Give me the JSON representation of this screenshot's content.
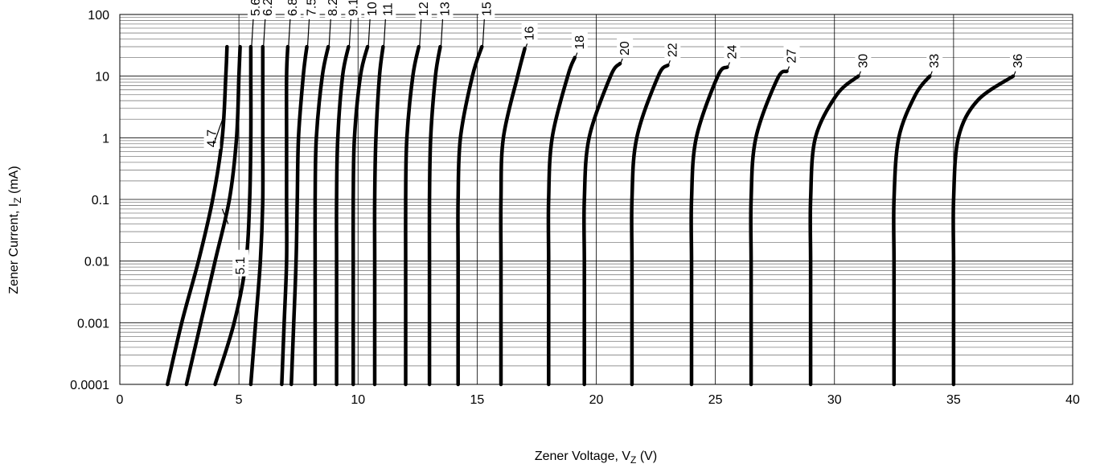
{
  "chart_data": {
    "type": "line",
    "title": "",
    "xlabel": {
      "main": "Zener Voltage, V",
      "sub": "Z",
      "tail": " (V)"
    },
    "ylabel": {
      "main": "Zener Current, I",
      "sub": "Z",
      "tail": " (mA)"
    },
    "xlim": [
      0,
      40
    ],
    "ylim": [
      0.0001,
      100
    ],
    "yscale": "log",
    "grid": true,
    "legend": "none",
    "x_ticks": [
      "0",
      "5",
      "10",
      "15",
      "20",
      "25",
      "30",
      "35",
      "40"
    ],
    "y_ticks": [
      "0.0001",
      "0.001",
      "0.01",
      "0.1",
      "1",
      "10",
      "100"
    ],
    "colors": {
      "curve": "#000000",
      "grid": "#808080",
      "background": "#ffffff"
    },
    "series": [
      {
        "name": "4.7",
        "points": [
          [
            2.0,
            0.0001
          ],
          [
            2.6,
            0.001
          ],
          [
            3.3,
            0.01
          ],
          [
            3.9,
            0.1
          ],
          [
            4.3,
            1
          ],
          [
            4.45,
            10
          ],
          [
            4.5,
            30
          ]
        ]
      },
      {
        "name": "5.1",
        "points": [
          [
            2.8,
            0.0001
          ],
          [
            3.4,
            0.001
          ],
          [
            4.0,
            0.01
          ],
          [
            4.6,
            0.1
          ],
          [
            4.9,
            1
          ],
          [
            5.0,
            10
          ],
          [
            5.05,
            30
          ]
        ]
      },
      {
        "name": "5.6",
        "points": [
          [
            4.0,
            0.0001
          ],
          [
            4.8,
            0.001
          ],
          [
            5.3,
            0.01
          ],
          [
            5.45,
            0.1
          ],
          [
            5.5,
            1
          ],
          [
            5.5,
            10
          ],
          [
            5.5,
            30
          ]
        ]
      },
      {
        "name": "6.2",
        "points": [
          [
            5.5,
            0.0001
          ],
          [
            5.7,
            0.001
          ],
          [
            5.9,
            0.01
          ],
          [
            6.0,
            0.1
          ],
          [
            6.0,
            1
          ],
          [
            6.0,
            10
          ],
          [
            6.0,
            30
          ]
        ]
      },
      {
        "name": "6.8",
        "points": [
          [
            6.8,
            0.0001
          ],
          [
            6.9,
            0.001
          ],
          [
            7.0,
            0.01
          ],
          [
            7.0,
            0.1
          ],
          [
            7.0,
            1
          ],
          [
            7.0,
            10
          ],
          [
            7.05,
            30
          ]
        ]
      },
      {
        "name": "7.5",
        "points": [
          [
            7.2,
            0.0001
          ],
          [
            7.3,
            0.001
          ],
          [
            7.4,
            0.01
          ],
          [
            7.45,
            0.1
          ],
          [
            7.5,
            1
          ],
          [
            7.7,
            10
          ],
          [
            7.85,
            30
          ]
        ]
      },
      {
        "name": "8.2",
        "points": [
          [
            8.2,
            0.0001
          ],
          [
            8.2,
            0.001
          ],
          [
            8.2,
            0.01
          ],
          [
            8.2,
            0.1
          ],
          [
            8.25,
            1
          ],
          [
            8.5,
            10
          ],
          [
            8.75,
            30
          ]
        ]
      },
      {
        "name": "9.1",
        "points": [
          [
            9.1,
            0.0001
          ],
          [
            9.1,
            0.001
          ],
          [
            9.1,
            0.01
          ],
          [
            9.1,
            0.1
          ],
          [
            9.15,
            1
          ],
          [
            9.35,
            10
          ],
          [
            9.6,
            30
          ]
        ]
      },
      {
        "name": "10",
        "points": [
          [
            9.8,
            0.0001
          ],
          [
            9.8,
            0.001
          ],
          [
            9.8,
            0.01
          ],
          [
            9.8,
            0.1
          ],
          [
            9.85,
            1
          ],
          [
            10.1,
            10
          ],
          [
            10.4,
            30
          ]
        ]
      },
      {
        "name": "11",
        "points": [
          [
            10.7,
            0.0001
          ],
          [
            10.7,
            0.001
          ],
          [
            10.7,
            0.01
          ],
          [
            10.7,
            0.1
          ],
          [
            10.75,
            1
          ],
          [
            10.9,
            10
          ],
          [
            11.05,
            30
          ]
        ]
      },
      {
        "name": "12",
        "points": [
          [
            12.0,
            0.0001
          ],
          [
            12.0,
            0.001
          ],
          [
            12.0,
            0.01
          ],
          [
            12.0,
            0.1
          ],
          [
            12.05,
            1
          ],
          [
            12.3,
            10
          ],
          [
            12.55,
            30
          ]
        ]
      },
      {
        "name": "13",
        "points": [
          [
            13.0,
            0.0001
          ],
          [
            13.0,
            0.001
          ],
          [
            13.0,
            0.01
          ],
          [
            13.0,
            0.1
          ],
          [
            13.05,
            1
          ],
          [
            13.25,
            10
          ],
          [
            13.45,
            30
          ]
        ]
      },
      {
        "name": "15",
        "points": [
          [
            14.2,
            0.0001
          ],
          [
            14.2,
            0.001
          ],
          [
            14.2,
            0.01
          ],
          [
            14.2,
            0.1
          ],
          [
            14.3,
            1
          ],
          [
            14.8,
            10
          ],
          [
            15.2,
            30
          ]
        ]
      },
      {
        "name": "16",
        "points": [
          [
            16.0,
            0.0001
          ],
          [
            16.0,
            0.001
          ],
          [
            16.0,
            0.01
          ],
          [
            16.0,
            0.1
          ],
          [
            16.1,
            1
          ],
          [
            16.7,
            10
          ],
          [
            17.0,
            28
          ]
        ]
      },
      {
        "name": "18",
        "points": [
          [
            18.0,
            0.0001
          ],
          [
            18.0,
            0.001
          ],
          [
            18.0,
            0.01
          ],
          [
            18.0,
            0.1
          ],
          [
            18.15,
            1
          ],
          [
            18.8,
            10
          ],
          [
            19.1,
            20
          ]
        ]
      },
      {
        "name": "20",
        "points": [
          [
            19.5,
            0.0001
          ],
          [
            19.5,
            0.001
          ],
          [
            19.5,
            0.01
          ],
          [
            19.5,
            0.1
          ],
          [
            19.7,
            1
          ],
          [
            20.6,
            10
          ],
          [
            21.0,
            16
          ]
        ]
      },
      {
        "name": "22",
        "points": [
          [
            21.5,
            0.0001
          ],
          [
            21.5,
            0.001
          ],
          [
            21.5,
            0.01
          ],
          [
            21.5,
            0.1
          ],
          [
            21.7,
            1
          ],
          [
            22.6,
            10
          ],
          [
            23.0,
            15
          ]
        ]
      },
      {
        "name": "24",
        "points": [
          [
            24.0,
            0.0001
          ],
          [
            24.0,
            0.001
          ],
          [
            24.0,
            0.01
          ],
          [
            24.0,
            0.1
          ],
          [
            24.2,
            1
          ],
          [
            25.1,
            10
          ],
          [
            25.5,
            14
          ]
        ]
      },
      {
        "name": "27",
        "points": [
          [
            26.5,
            0.0001
          ],
          [
            26.5,
            0.001
          ],
          [
            26.5,
            0.01
          ],
          [
            26.5,
            0.1
          ],
          [
            26.7,
            1
          ],
          [
            27.6,
            9
          ],
          [
            28.0,
            12
          ]
        ]
      },
      {
        "name": "30",
        "points": [
          [
            29.0,
            0.0001
          ],
          [
            29.0,
            0.001
          ],
          [
            29.0,
            0.01
          ],
          [
            29.0,
            0.1
          ],
          [
            29.2,
            1
          ],
          [
            30.1,
            5
          ],
          [
            31.0,
            10
          ]
        ]
      },
      {
        "name": "33",
        "points": [
          [
            32.5,
            0.0001
          ],
          [
            32.5,
            0.001
          ],
          [
            32.5,
            0.01
          ],
          [
            32.5,
            0.1
          ],
          [
            32.7,
            1
          ],
          [
            33.4,
            5
          ],
          [
            34.0,
            10
          ]
        ]
      },
      {
        "name": "36",
        "points": [
          [
            35.0,
            0.0001
          ],
          [
            35.0,
            0.001
          ],
          [
            35.0,
            0.01
          ],
          [
            35.0,
            0.1
          ],
          [
            35.2,
            1
          ],
          [
            36.0,
            4
          ],
          [
            37.5,
            10
          ]
        ]
      }
    ]
  }
}
